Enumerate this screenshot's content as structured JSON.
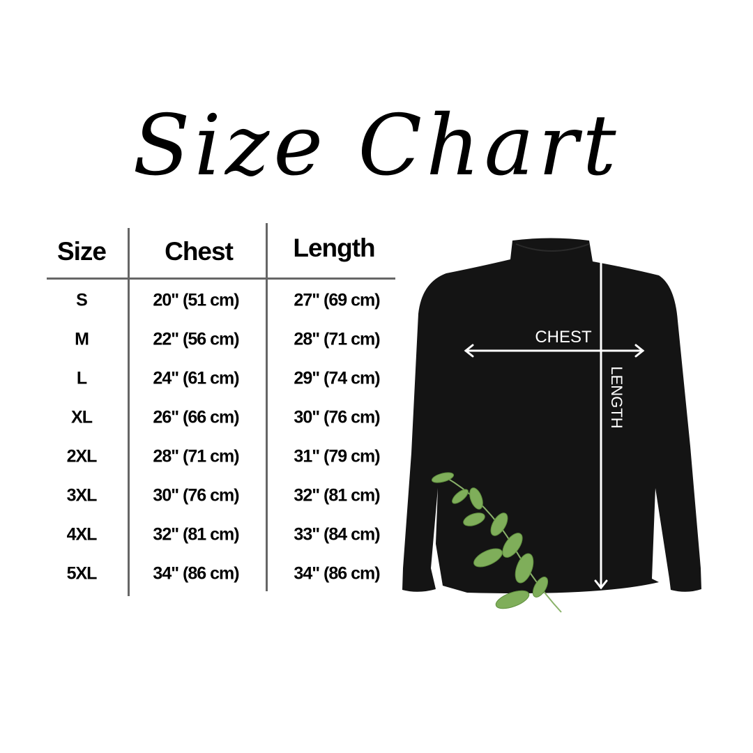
{
  "title": "Size Chart",
  "table": {
    "headers": [
      "Size",
      "Chest",
      "Length"
    ],
    "rows": [
      {
        "size": "S",
        "chest": "20\" (51 cm)",
        "length": "27\" (69 cm)"
      },
      {
        "size": "M",
        "chest": "22\" (56 cm)",
        "length": "28\" (71 cm)"
      },
      {
        "size": "L",
        "chest": "24\" (61 cm)",
        "length": "29\" (74 cm)"
      },
      {
        "size": "XL",
        "chest": "26\" (66 cm)",
        "length": "30\" (76 cm)"
      },
      {
        "size": "2XL",
        "chest": "28\" (71 cm)",
        "length": "31\" (79 cm)"
      },
      {
        "size": "3XL",
        "chest": "30\" (76 cm)",
        "length": "32\" (81 cm)"
      },
      {
        "size": "4XL",
        "chest": "32\" (81 cm)",
        "length": "33\" (84 cm)"
      },
      {
        "size": "5XL",
        "chest": "34\" (86 cm)",
        "length": "34\" (86 cm)"
      }
    ]
  },
  "diagram": {
    "chest_label": "CHEST",
    "length_label": "LENGTH",
    "garment_color": "#141414",
    "leaf_color": "#7fae5a"
  }
}
